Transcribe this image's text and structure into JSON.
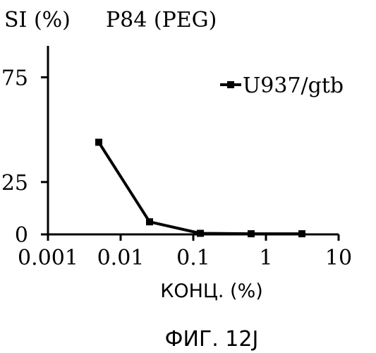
{
  "chart_data": {
    "type": "line",
    "title": "P84 (PEG)",
    "ylabel": "SI (%)",
    "xlabel": "КОНЦ. (%)",
    "caption": "ФИГ. 12J",
    "x_scale": "log",
    "xlim": [
      0.001,
      10
    ],
    "ylim": [
      0,
      90
    ],
    "x_ticks": [
      {
        "value": 0.001,
        "label": "0.001"
      },
      {
        "value": 0.01,
        "label": "0.01"
      },
      {
        "value": 0.1,
        "label": "0.1"
      },
      {
        "value": 1,
        "label": "1"
      },
      {
        "value": 10,
        "label": "10"
      }
    ],
    "y_ticks": [
      {
        "value": 0,
        "label": "0"
      },
      {
        "value": 25,
        "label": "25"
      },
      {
        "value": 75,
        "label": "75"
      }
    ],
    "grid": false,
    "legend_position": "top-right",
    "series": [
      {
        "name": "U937/gtb",
        "x": [
          0.005,
          0.025,
          0.125,
          0.625,
          3.125
        ],
        "y": [
          44,
          6,
          0.5,
          0.3,
          0.3
        ],
        "color": "#000000",
        "marker": "square"
      }
    ]
  }
}
